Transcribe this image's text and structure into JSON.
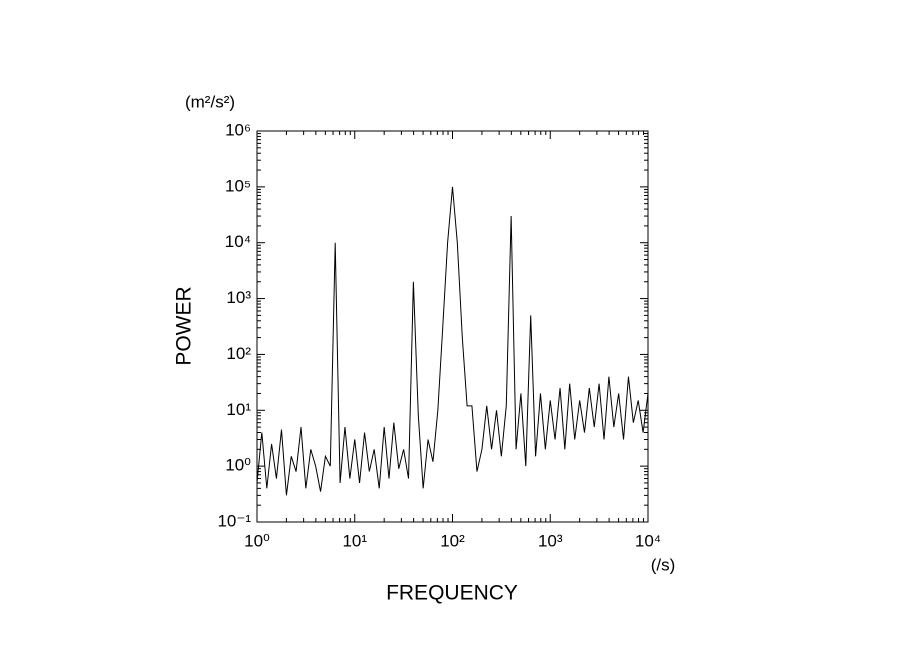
{
  "chart_data": {
    "type": "line",
    "y_unit": "(m²/s²)",
    "x_unit": "(/s)",
    "xlabel": "FREQUENCY",
    "ylabel": "POWER",
    "xscale": "log",
    "yscale": "log",
    "color": "#000000",
    "xlim": [
      1,
      10000
    ],
    "ylim": [
      0.1,
      1000000
    ],
    "xticks": [
      {
        "value": 1,
        "label": "10⁰"
      },
      {
        "value": 10,
        "label": "10¹"
      },
      {
        "value": 100,
        "label": "10²"
      },
      {
        "value": 1000,
        "label": "10³"
      },
      {
        "value": 10000,
        "label": "10⁴"
      }
    ],
    "yticks": [
      {
        "value": 0.1,
        "label": "10⁻¹"
      },
      {
        "value": 1,
        "label": "10⁰"
      },
      {
        "value": 10,
        "label": "10¹"
      },
      {
        "value": 100,
        "label": "10²"
      },
      {
        "value": 1000,
        "label": "10³"
      },
      {
        "value": 10000,
        "label": "10⁴"
      },
      {
        "value": 100000,
        "label": "10⁵"
      },
      {
        "value": 1000000,
        "label": "10⁶"
      }
    ],
    "x": [
      1,
      1.12,
      1.26,
      1.41,
      1.58,
      1.78,
      2,
      2.24,
      2.51,
      2.82,
      3.16,
      3.55,
      3.98,
      4.47,
      5.01,
      5.62,
      6.31,
      7.08,
      7.94,
      8.91,
      10,
      11.2,
      12.6,
      14.1,
      15.8,
      17.8,
      20,
      22.4,
      25.1,
      28.2,
      31.6,
      35.5,
      39.8,
      44.7,
      50.1,
      56.2,
      63.1,
      70.8,
      79.4,
      89.1,
      100,
      112,
      126,
      141,
      158,
      178,
      200,
      224,
      251,
      282,
      316,
      355,
      398,
      447,
      501,
      562,
      631,
      708,
      794,
      891,
      1000,
      1120,
      1260,
      1410,
      1580,
      1780,
      2000,
      2240,
      2510,
      2820,
      3160,
      3550,
      3980,
      4470,
      5010,
      5620,
      6310,
      7080,
      7940,
      8910,
      10000
    ],
    "values": [
      0.5,
      4,
      0.4,
      2.5,
      0.6,
      4.5,
      0.3,
      1.5,
      0.8,
      5,
      0.4,
      2,
      1,
      0.35,
      1.5,
      1,
      10000,
      0.5,
      5,
      0.6,
      3,
      0.5,
      4,
      0.8,
      2,
      0.4,
      5,
      0.6,
      6,
      0.9,
      2,
      0.6,
      2000,
      8,
      0.4,
      3,
      1.2,
      10,
      300,
      10000,
      100000,
      10000,
      200,
      12,
      12,
      0.8,
      2,
      12,
      2,
      10,
      1.5,
      12,
      30000,
      2,
      20,
      1,
      500,
      1.5,
      20,
      2,
      15,
      3,
      25,
      2,
      30,
      3,
      15,
      4,
      25,
      5,
      30,
      3,
      40,
      5,
      20,
      3,
      40,
      6,
      15,
      4,
      20
    ]
  }
}
